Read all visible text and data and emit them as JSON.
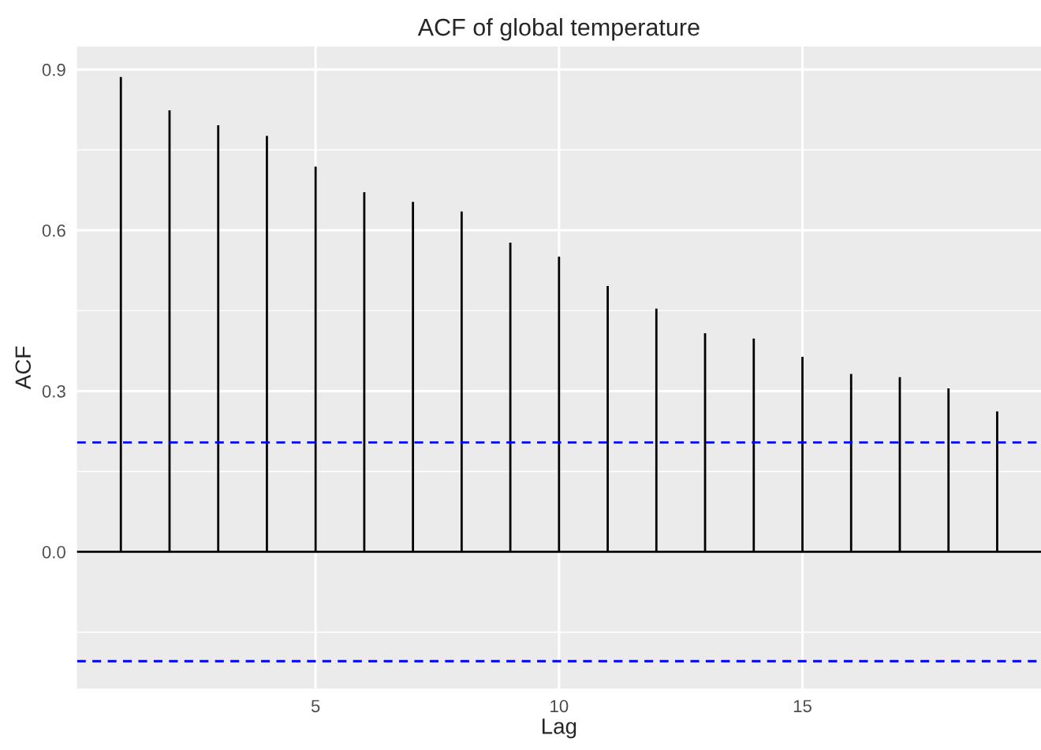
{
  "chart_data": {
    "type": "bar",
    "title": "ACF of global temperature",
    "xlabel": "Lag",
    "ylabel": "ACF",
    "x": [
      1,
      2,
      3,
      4,
      5,
      6,
      7,
      8,
      9,
      10,
      11,
      12,
      13,
      14,
      15,
      16,
      17,
      18,
      19
    ],
    "values": [
      0.886,
      0.824,
      0.796,
      0.776,
      0.719,
      0.671,
      0.653,
      0.635,
      0.577,
      0.551,
      0.496,
      0.454,
      0.408,
      0.398,
      0.364,
      0.332,
      0.326,
      0.305,
      0.262
    ],
    "color": "#000000",
    "xlim": [
      0.1,
      19.9
    ],
    "xticks": [
      5,
      10,
      15
    ],
    "ylim": [
      -0.255,
      0.943
    ],
    "yticks": [
      {
        "value": 0,
        "label": "0.0"
      },
      0.3,
      0.6,
      0.9
    ],
    "ref_lines": [
      {
        "axis": "y",
        "value": 0,
        "color": "#000000",
        "line_style": "solid"
      },
      {
        "axis": "y",
        "value": 0.204,
        "color": "#0000ff",
        "line_style": "dashed"
      },
      {
        "axis": "y",
        "value": -0.204,
        "color": "#0000ff",
        "line_style": "dashed"
      }
    ],
    "grid": true
  }
}
